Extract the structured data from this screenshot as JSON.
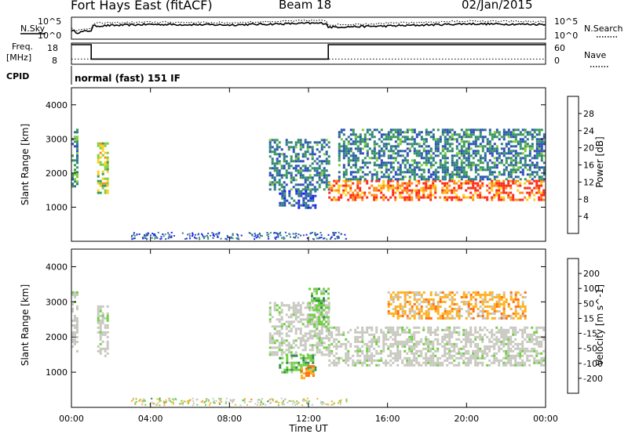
{
  "header": {
    "station": "Fort Hays East (fitACF)",
    "beam": "Beam 18",
    "date": "02/Jan/2015",
    "cpid_program": "normal (fast) 151 IF"
  },
  "side_labels": {
    "nsky": "N.Sky",
    "nsearch": "N.Search",
    "freq": "Freq.",
    "freq_unit": "[MHz]",
    "nave": "Nave",
    "cpid": "CPID"
  },
  "noise_axis": {
    "ticks_left": [
      "10^5",
      "10^0"
    ],
    "ticks_right": [
      "10^5",
      "10^0"
    ]
  },
  "freq_axis": {
    "ticks_left": [
      "18",
      "8"
    ],
    "ticks_right": [
      "60",
      "0"
    ]
  },
  "colors": {
    "power_scale": [
      "#1a1aff",
      "#2e4fb8",
      "#2f7a8a",
      "#3a9a5a",
      "#7fcf3c",
      "#ffcf1a",
      "#ff8c1a",
      "#ff2a1a"
    ],
    "velocity_scale": [
      "#3020c0",
      "#2f6fa0",
      "#2f8f4a",
      "#6fd040",
      "#c8c8c0",
      "#ffb020",
      "#ff7010",
      "#ff2a10"
    ],
    "ground_scatter": "#c8c8c0"
  },
  "chart_data": [
    {
      "type": "heatmap",
      "name": "power",
      "ylabel": "Slant Range [km]",
      "xlabel": "",
      "ylim": [
        0,
        4500
      ],
      "y_ticks": [
        1000,
        2000,
        3000,
        4000
      ],
      "x_tick_labels": [
        "00:00",
        "04:00",
        "08:00",
        "12:00",
        "16:00",
        "20:00",
        "00:00"
      ],
      "colorbar": {
        "label": "Power [dB]",
        "ticks": [
          "28",
          "24",
          "20",
          "16",
          "12",
          "8",
          "4"
        ],
        "range": [
          0,
          30
        ]
      },
      "features": [
        {
          "t_start": 0.0,
          "t_end": 0.3,
          "range_low": 1600,
          "range_high": 3300,
          "power": 12
        },
        {
          "t_start": 1.3,
          "t_end": 1.8,
          "range_low": 1400,
          "range_high": 2900,
          "power": 18
        },
        {
          "t_start": 10.0,
          "t_end": 13.0,
          "range_low": 1500,
          "range_high": 3000,
          "power": 10
        },
        {
          "t_start": 10.5,
          "t_end": 12.3,
          "range_low": 1000,
          "range_high": 1500,
          "power": 6
        },
        {
          "t_start": 13.0,
          "t_end": 24.0,
          "range_low": 1200,
          "range_high": 1800,
          "power": 26
        },
        {
          "t_start": 13.5,
          "t_end": 24.0,
          "range_low": 1800,
          "range_high": 3300,
          "power": 10
        }
      ]
    },
    {
      "type": "heatmap",
      "name": "velocity",
      "ylabel": "Slant Range [km]",
      "xlabel": "Time UT",
      "ylim": [
        0,
        4500
      ],
      "y_ticks": [
        1000,
        2000,
        3000,
        4000
      ],
      "x_tick_labels": [
        "00:00",
        "04:00",
        "08:00",
        "12:00",
        "16:00",
        "20:00",
        "00:00"
      ],
      "colorbar": {
        "label": "Velocity [m s^-1]",
        "ticks": [
          "200",
          "100",
          "50",
          "15",
          "-15",
          "-50",
          "-100",
          "-200"
        ],
        "range": [
          -250,
          250
        ]
      },
      "features": [
        {
          "t_start": 0.0,
          "t_end": 0.3,
          "range_low": 1600,
          "range_high": 3300,
          "velocity": 0
        },
        {
          "t_start": 1.3,
          "t_end": 1.8,
          "range_low": 1400,
          "range_high": 2900,
          "velocity": 0
        },
        {
          "t_start": 10.0,
          "t_end": 13.0,
          "range_low": 1500,
          "range_high": 3000,
          "velocity": 0
        },
        {
          "t_start": 12.0,
          "t_end": 13.0,
          "range_low": 2200,
          "range_high": 3400,
          "velocity": 30
        },
        {
          "t_start": 10.5,
          "t_end": 12.3,
          "range_low": 1000,
          "range_high": 1500,
          "velocity": 40
        },
        {
          "t_start": 11.6,
          "t_end": 12.3,
          "range_low": 800,
          "range_high": 1200,
          "velocity": -60
        },
        {
          "t_start": 13.0,
          "t_end": 24.0,
          "range_low": 1200,
          "range_high": 2300,
          "velocity": 0
        },
        {
          "t_start": 16.0,
          "t_end": 23.0,
          "range_low": 2500,
          "range_high": 3300,
          "velocity": -30
        }
      ]
    }
  ],
  "noise_data": {
    "type": "line",
    "x_hours": [
      0,
      0.3,
      1.0,
      1.1,
      4,
      8,
      12,
      12.9,
      13.0,
      16,
      20,
      24
    ],
    "nsky_level": [
      1.6,
      1.2,
      1.6,
      2.4,
      2.7,
      2.6,
      2.9,
      2.9,
      2.2,
      2.4,
      2.8,
      2.7
    ],
    "nsearch_level": [
      2.0,
      1.6,
      2.0,
      2.9,
      3.1,
      3.0,
      3.4,
      3.4,
      2.6,
      2.9,
      3.3,
      3.2
    ]
  },
  "freq_data": {
    "type": "line",
    "x_hours": [
      0,
      1.0,
      1.0,
      13.0,
      13.0,
      24
    ],
    "freq_mhz": [
      18,
      18,
      10,
      10,
      18,
      18
    ],
    "nave_level": [
      12,
      12,
      12,
      12,
      12,
      12
    ]
  }
}
